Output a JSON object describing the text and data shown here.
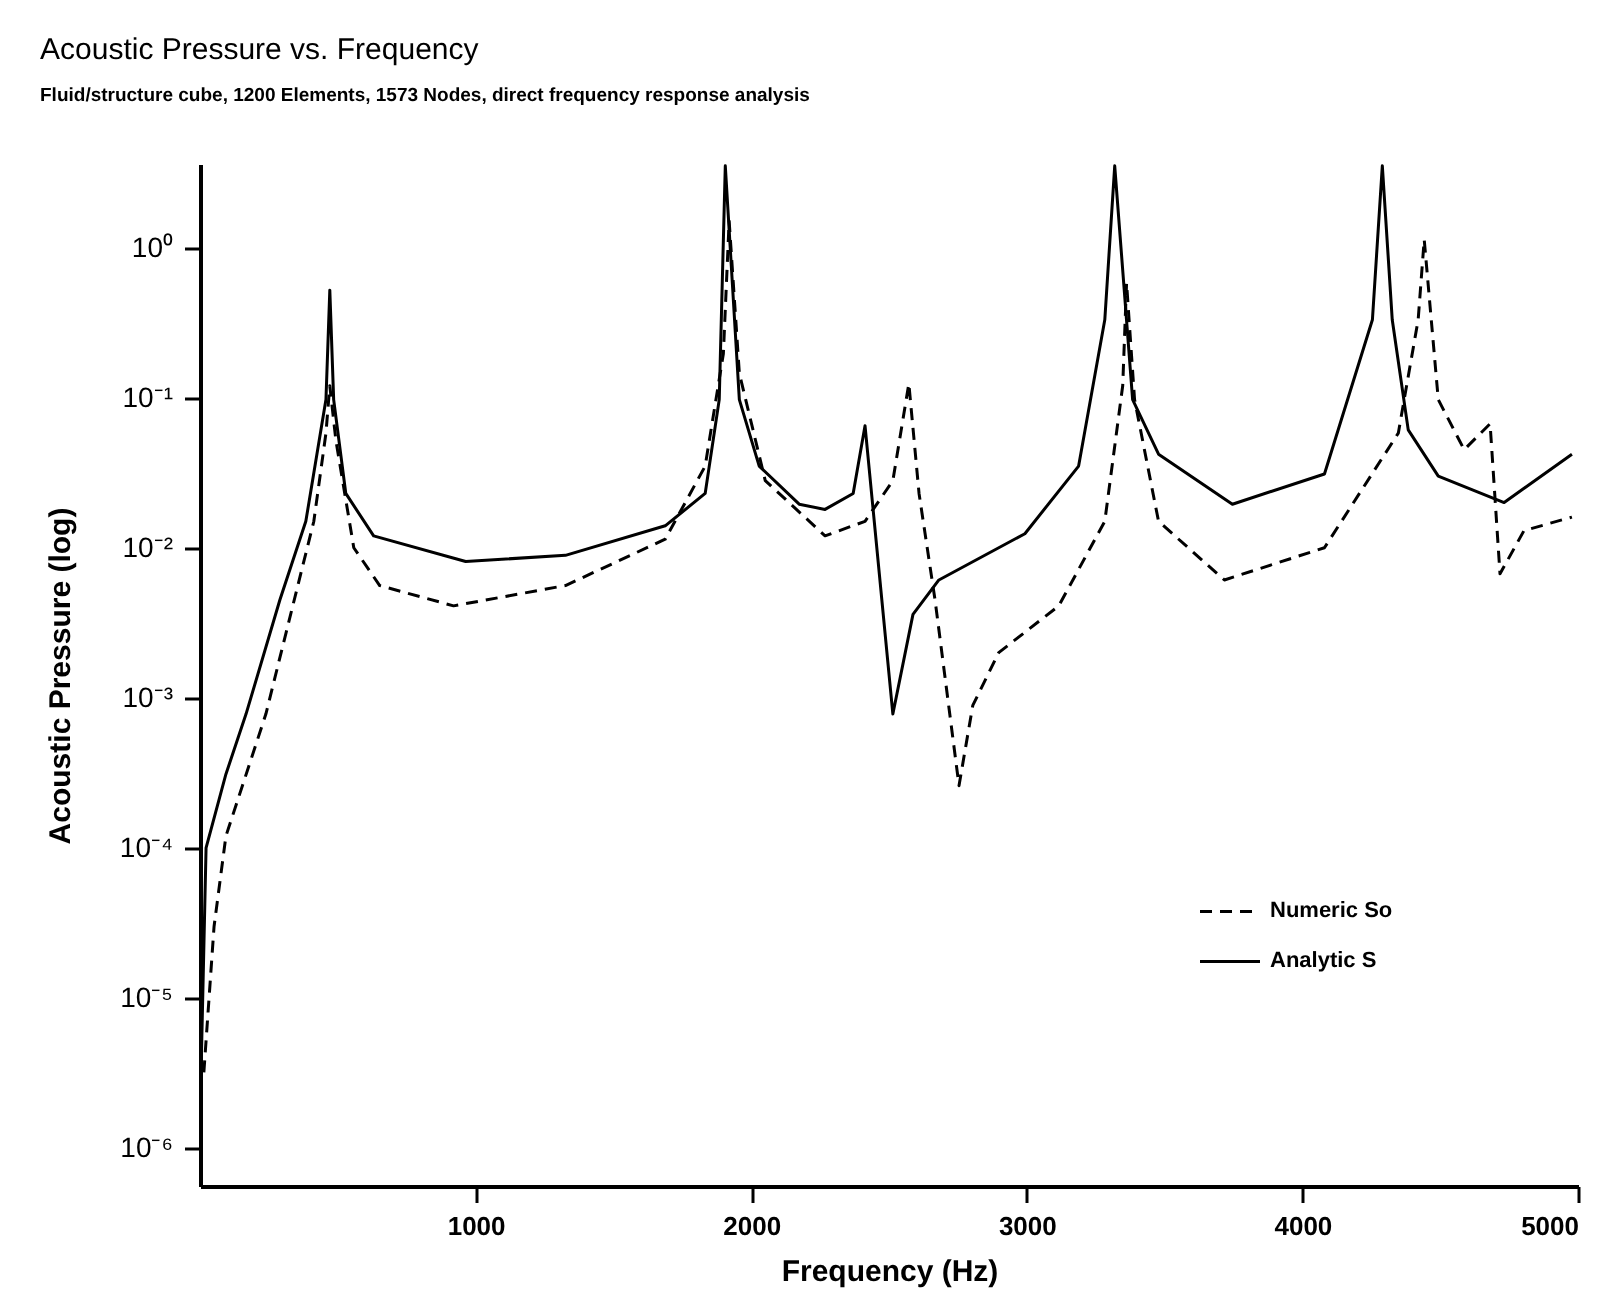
{
  "chart_data": {
    "type": "line",
    "title": "Acoustic Pressure vs. Frequency",
    "subtitle": "Fluid/structure cube, 1200 Elements, 1573 Nodes, direct frequency response analysis",
    "xlabel": "Frequency (Hz)",
    "ylabel": "Acoustic Pressure (log)",
    "log": "y",
    "xlim": [
      0,
      5000
    ],
    "ylim": [
      5.6e-07,
      3.6
    ],
    "xticks": [
      1000,
      2000,
      3000,
      4000,
      5000
    ],
    "yticks": [
      {
        "value": 1e-06,
        "label": "10⁻⁶"
      },
      {
        "value": 1e-05,
        "label": "10⁻⁵"
      },
      {
        "value": 0.0001,
        "label": "10⁻⁴"
      },
      {
        "value": 0.001,
        "label": "10⁻³"
      },
      {
        "value": 0.01,
        "label": "10⁻²"
      },
      {
        "value": 0.1,
        "label": "10⁻¹"
      },
      {
        "value": 1,
        "label": "10⁰"
      }
    ],
    "grid": false,
    "legend": "right",
    "marker": "none",
    "series": [
      {
        "name": "Numeric So",
        "color": "#000000",
        "line_style": "dashed",
        "x": [
          14,
          51,
          94,
          239,
          312,
          413,
          457,
          471,
          493,
          558,
          652,
          920,
          1326,
          1688,
          1833,
          1899,
          1920,
          1957,
          2051,
          2268,
          2413,
          2514,
          2572,
          2609,
          2667,
          2754,
          2804,
          2898,
          3116,
          3283,
          3348,
          3362,
          3391,
          3478,
          3717,
          4080,
          4348,
          4420,
          4442,
          4493,
          4587,
          4681,
          4717,
          4804,
          4978
        ],
        "values": [
          3.2e-06,
          3e-05,
          0.00012,
          0.00078,
          0.0027,
          0.015,
          0.058,
          0.12,
          0.052,
          0.01,
          0.0056,
          0.0041,
          0.0056,
          0.0114,
          0.035,
          0.196,
          1.5,
          0.145,
          0.028,
          0.012,
          0.015,
          0.028,
          0.124,
          0.023,
          0.0045,
          0.00026,
          0.00089,
          0.002,
          0.0041,
          0.015,
          0.12,
          0.58,
          0.097,
          0.015,
          0.0061,
          0.01,
          0.058,
          0.33,
          1.13,
          0.097,
          0.045,
          0.067,
          0.0067,
          0.013,
          0.016
        ]
      },
      {
        "name": "Analytic S",
        "color": "#000000",
        "line_style": "solid",
        "x": [
          5,
          22,
          94,
          167,
          290,
          384,
          457,
          471,
          485,
          529,
          630,
          964,
          1326,
          1688,
          1833,
          1884,
          1906,
          1957,
          2029,
          2174,
          2268,
          2370,
          2413,
          2514,
          2587,
          2681,
          2993,
          3188,
          3283,
          3319,
          3384,
          3478,
          3746,
          4080,
          4254,
          4290,
          4326,
          4384,
          4493,
          4732,
          4978
        ],
        "values": [
          4e-06,
          0.0001,
          0.00031,
          0.00078,
          0.0045,
          0.015,
          0.097,
          0.52,
          0.097,
          0.023,
          0.012,
          0.0081,
          0.0089,
          0.014,
          0.023,
          0.097,
          3.5,
          0.097,
          0.035,
          0.0195,
          0.018,
          0.023,
          0.065,
          0.00078,
          0.0036,
          0.0061,
          0.0124,
          0.035,
          0.33,
          3.5,
          0.097,
          0.042,
          0.0195,
          0.031,
          0.33,
          3.5,
          0.33,
          0.061,
          0.03,
          0.02,
          0.042
        ]
      }
    ]
  }
}
